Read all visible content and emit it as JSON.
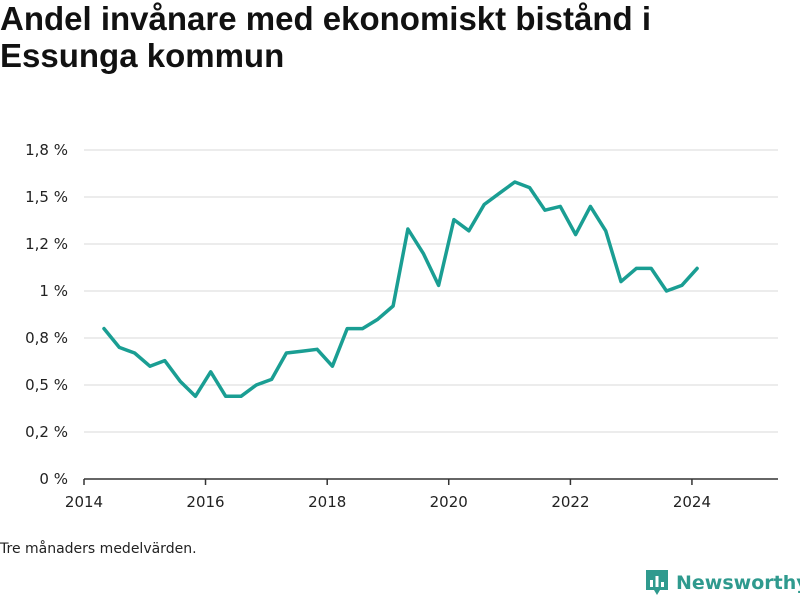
{
  "title": "Andel invånare med ekonomiskt bistånd i Essunga kommun",
  "note": "Tre månaders medelvärden.",
  "brand": {
    "name": "Newsworthy",
    "icon": "newsworthy-logo-icon",
    "color": "#2f9a8e"
  },
  "chart_data": {
    "type": "line",
    "title": "Andel invånare med ekonomiskt bistånd i Essunga kommun",
    "xlabel": "",
    "ylabel": "",
    "line_color": "#1a9e93",
    "grid": true,
    "ylim": [
      0,
      1.75
    ],
    "xlim": [
      "2014-01-01",
      "2025-06-01"
    ],
    "y_ticks": [
      0,
      0.25,
      0.5,
      0.75,
      1.0,
      1.25,
      1.5,
      1.75
    ],
    "y_tick_labels": [
      "0 %",
      "0,2 %",
      "0,5 %",
      "0,8 %",
      "1 %",
      "1,2 %",
      "1,5 %",
      "1,8 %"
    ],
    "x_ticks": [
      "2014-01-01",
      "2016-01-01",
      "2018-01-01",
      "2020-01-01",
      "2022-01-01",
      "2024-01-01"
    ],
    "x_tick_labels": [
      "2014",
      "2016",
      "2018",
      "2020",
      "2022",
      "2024"
    ],
    "series": [
      {
        "x": [
          "2014-05-01",
          "2014-08-01",
          "2014-11-01",
          "2015-02-01",
          "2015-05-01",
          "2015-08-01",
          "2015-11-01",
          "2016-02-01",
          "2016-05-01",
          "2016-08-01",
          "2016-11-01",
          "2017-02-01",
          "2017-05-01",
          "2017-08-01",
          "2017-11-01",
          "2018-02-01",
          "2018-05-01",
          "2018-08-01",
          "2018-11-01",
          "2019-02-01",
          "2019-05-01",
          "2019-08-01",
          "2019-11-01",
          "2020-02-01",
          "2020-05-01",
          "2020-08-01",
          "2020-11-01",
          "2021-02-01",
          "2021-05-01",
          "2021-08-01",
          "2021-11-01",
          "2022-02-01",
          "2022-05-01",
          "2022-08-01",
          "2022-11-01",
          "2023-02-01",
          "2023-05-01",
          "2023-08-01",
          "2023-11-01",
          "2024-02-01"
        ],
        "values": [
          0.8,
          0.7,
          0.67,
          0.6,
          0.63,
          0.52,
          0.44,
          0.57,
          0.44,
          0.44,
          0.5,
          0.53,
          0.67,
          0.68,
          0.69,
          0.6,
          0.8,
          0.8,
          0.85,
          0.92,
          1.33,
          1.2,
          1.03,
          1.38,
          1.32,
          1.46,
          1.52,
          1.58,
          1.55,
          1.43,
          1.45,
          1.3,
          1.45,
          1.32,
          1.05,
          1.12,
          1.12,
          1.0,
          1.03,
          1.12
        ]
      }
    ]
  }
}
